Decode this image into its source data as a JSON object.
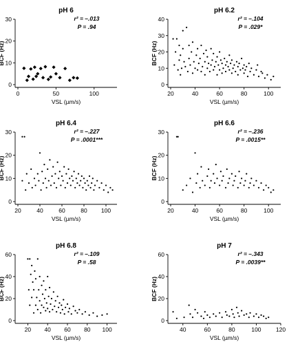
{
  "chart_data": [
    {
      "type": "scatter",
      "title": "pH 6",
      "xlabel": "VSL (µm/s)",
      "ylabel": "BCF (Hz)",
      "xlim": [
        0,
        130
      ],
      "ylim": [
        0,
        30
      ],
      "xticks": [
        "0",
        "50",
        "100"
      ],
      "yticks": [
        "0",
        "10",
        "20",
        "30"
      ],
      "marker": "diamond",
      "r2_label": "r² = –.013",
      "p_label": "P = .94",
      "x": [
        8,
        12,
        14,
        17,
        20,
        22,
        24,
        26,
        30,
        33,
        36,
        40,
        43,
        47,
        50,
        55,
        62,
        68,
        73,
        78
      ],
      "y": [
        7.5,
        2,
        3.8,
        7.2,
        2.5,
        8,
        3.8,
        5,
        7.4,
        3.2,
        8.2,
        2.4,
        3.5,
        8,
        5,
        3.2,
        7.4,
        2,
        3.2,
        3
      ]
    },
    {
      "type": "scatter",
      "title": "pH 6.2",
      "xlabel": "VSL (µm/s)",
      "ylabel": "BCF (Hz)",
      "xlim": [
        20,
        110
      ],
      "ylim": [
        0,
        40
      ],
      "xticks": [
        "20",
        "40",
        "60",
        "80",
        "100"
      ],
      "yticks": [
        "0",
        "10",
        "20",
        "30",
        "40"
      ],
      "marker": "dot",
      "r2_label": "r² = –.104",
      "p_label": "P = .029*",
      "x": [
        22,
        23,
        24,
        25,
        26,
        27,
        27,
        28,
        28,
        29,
        30,
        30,
        31,
        32,
        33,
        34,
        35,
        35,
        36,
        37,
        38,
        38,
        39,
        40,
        41,
        42,
        42,
        43,
        44,
        45,
        45,
        46,
        47,
        48,
        48,
        49,
        50,
        50,
        51,
        52,
        53,
        53,
        54,
        55,
        55,
        56,
        57,
        58,
        58,
        59,
        60,
        60,
        61,
        62,
        62,
        63,
        64,
        65,
        65,
        66,
        67,
        68,
        68,
        69,
        70,
        70,
        71,
        72,
        73,
        74,
        75,
        75,
        76,
        77,
        78,
        79,
        80,
        80,
        81,
        82,
        83,
        84,
        85,
        86,
        88,
        90,
        91,
        92,
        94,
        95,
        97,
        99,
        102,
        104
      ],
      "y": [
        28,
        12,
        20,
        28,
        9,
        15,
        24,
        6,
        18,
        10,
        33,
        22,
        14,
        11,
        35,
        8,
        24,
        16,
        12,
        20,
        7,
        26,
        14,
        10,
        18,
        9,
        22,
        13,
        16,
        8,
        24,
        11,
        19,
        6,
        14,
        21,
        10,
        17,
        13,
        8,
        22,
        12,
        15,
        9,
        19,
        11,
        14,
        6,
        17,
        12,
        9,
        20,
        15,
        7,
        13,
        10,
        16,
        12,
        8,
        14,
        11,
        9,
        18,
        13,
        7,
        15,
        10,
        12,
        8,
        14,
        11,
        6,
        13,
        9,
        16,
        10,
        7,
        12,
        9,
        11,
        5,
        13,
        8,
        10,
        6,
        9,
        12,
        5,
        8,
        7,
        4,
        6,
        3,
        5
      ]
    },
    {
      "type": "scatter",
      "title": "pH 6.4",
      "xlabel": "VSL (µm/s)",
      "ylabel": "BCF (Hz)",
      "xlim": [
        20,
        110
      ],
      "ylim": [
        0,
        30
      ],
      "xticks": [
        "20",
        "40",
        "60",
        "80",
        "100"
      ],
      "yticks": [
        "0",
        "10",
        "20",
        "30"
      ],
      "marker": "dot",
      "r2_label": "r² = –.227",
      "p_label": "P = .0001***",
      "x": [
        24,
        24,
        26,
        27,
        28,
        30,
        32,
        33,
        35,
        36,
        38,
        39,
        40,
        41,
        42,
        43,
        44,
        45,
        46,
        47,
        48,
        49,
        50,
        51,
        52,
        53,
        54,
        55,
        56,
        57,
        58,
        59,
        60,
        61,
        62,
        63,
        64,
        65,
        66,
        67,
        68,
        69,
        70,
        71,
        72,
        73,
        74,
        75,
        76,
        77,
        78,
        79,
        80,
        81,
        82,
        83,
        84,
        85,
        86,
        87,
        88,
        89,
        90,
        92,
        94,
        96,
        98,
        100,
        102,
        104,
        106
      ],
      "y": [
        28,
        9,
        28,
        5,
        12,
        8,
        14,
        6,
        10,
        7,
        12,
        9,
        21,
        5,
        13,
        8,
        16,
        10,
        6,
        14,
        9,
        18,
        7,
        11,
        15,
        8,
        12,
        6,
        17,
        10,
        13,
        7,
        11,
        9,
        15,
        6,
        12,
        8,
        14,
        10,
        7,
        11,
        9,
        13,
        6,
        10,
        8,
        12,
        7,
        9,
        11,
        6,
        10,
        8,
        5,
        9,
        7,
        11,
        6,
        8,
        10,
        5,
        7,
        9,
        6,
        8,
        5,
        7,
        4,
        6,
        5
      ]
    },
    {
      "type": "scatter",
      "title": "pH 6.6",
      "xlabel": "VSL (µm/s)",
      "ylabel": "BCF (Hz)",
      "xlim": [
        20,
        110
      ],
      "ylim": [
        0,
        30
      ],
      "xticks": [
        "20",
        "40",
        "60",
        "80",
        "100"
      ],
      "yticks": [
        "0",
        "10",
        "20",
        "30"
      ],
      "marker": "dot",
      "r2_label": "r² = –.236",
      "p_label": "P = .0015**",
      "x": [
        25,
        26,
        30,
        33,
        36,
        38,
        40,
        41,
        42,
        44,
        45,
        46,
        48,
        50,
        51,
        52,
        53,
        55,
        56,
        57,
        58,
        60,
        61,
        62,
        63,
        65,
        66,
        67,
        68,
        70,
        71,
        72,
        73,
        75,
        76,
        77,
        78,
        80,
        81,
        82,
        84,
        85,
        86,
        88,
        90,
        92,
        94,
        96,
        98,
        100,
        102,
        104
      ],
      "y": [
        28,
        28,
        5,
        7,
        10,
        4,
        21,
        8,
        12,
        6,
        15,
        9,
        7,
        11,
        14,
        6,
        9,
        12,
        8,
        16,
        10,
        7,
        13,
        9,
        11,
        6,
        14,
        8,
        10,
        12,
        7,
        9,
        11,
        6,
        13,
        8,
        10,
        7,
        9,
        12,
        6,
        8,
        10,
        7,
        9,
        6,
        8,
        5,
        7,
        6,
        4,
        5
      ]
    },
    {
      "type": "scatter",
      "title": "pH 6.8",
      "xlabel": "VSL (µm/s)",
      "ylabel": "BCF (Hz)",
      "xlim": [
        10,
        110
      ],
      "ylim": [
        0,
        60
      ],
      "xticks": [
        "20",
        "40",
        "60",
        "80",
        "100"
      ],
      "yticks": [
        "0",
        "20",
        "40",
        "60"
      ],
      "marker": "dot",
      "r2_label": "r² = –.109",
      "p_label": "P = .58",
      "x": [
        20,
        21,
        22,
        22,
        23,
        24,
        24,
        25,
        26,
        26,
        27,
        28,
        28,
        29,
        30,
        30,
        31,
        32,
        32,
        33,
        34,
        34,
        35,
        36,
        36,
        37,
        38,
        38,
        39,
        40,
        40,
        41,
        42,
        42,
        43,
        44,
        45,
        46,
        47,
        48,
        49,
        50,
        51,
        52,
        53,
        54,
        55,
        56,
        57,
        58,
        60,
        61,
        62,
        64,
        66,
        68,
        70,
        72,
        75,
        78,
        82,
        86,
        90,
        95,
        100
      ],
      "y": [
        56,
        28,
        56,
        14,
        42,
        21,
        50,
        35,
        7,
        28,
        45,
        14,
        38,
        21,
        56,
        10,
        28,
        18,
        40,
        7,
        32,
        14,
        24,
        12,
        36,
        20,
        9,
        28,
        16,
        40,
        11,
        22,
        8,
        30,
        15,
        20,
        10,
        26,
        13,
        18,
        8,
        22,
        12,
        16,
        7,
        14,
        10,
        19,
        6,
        12,
        15,
        8,
        11,
        6,
        13,
        9,
        7,
        10,
        6,
        8,
        5,
        7,
        4,
        5,
        6
      ]
    },
    {
      "type": "scatter",
      "title": "pH 7",
      "xlabel": "VSL (µm/s)",
      "ylabel": "BCF (Hz)",
      "xlim": [
        30,
        120
      ],
      "ylim": [
        0,
        60
      ],
      "xticks": [
        "40",
        "60",
        "80",
        "100",
        "120"
      ],
      "yticks": [
        "0",
        "20",
        "40",
        "60"
      ],
      "marker": "dot",
      "r2_label": "r² = –.343",
      "p_label": "P = .0039**",
      "x": [
        32,
        35,
        41,
        45,
        46,
        48,
        50,
        52,
        55,
        57,
        58,
        60,
        62,
        65,
        67,
        70,
        72,
        75,
        76,
        78,
        80,
        81,
        82,
        84,
        85,
        86,
        88,
        90,
        92,
        94,
        95,
        98,
        100,
        102,
        104,
        106,
        108,
        110
      ],
      "y": [
        8,
        2,
        3,
        14,
        6,
        3,
        10,
        7,
        4,
        2,
        8,
        5,
        3,
        6,
        4,
        7,
        3,
        8,
        5,
        4,
        10,
        6,
        3,
        12,
        7,
        4,
        9,
        5,
        6,
        3,
        7,
        4,
        6,
        3,
        5,
        4,
        2,
        3
      ]
    }
  ]
}
